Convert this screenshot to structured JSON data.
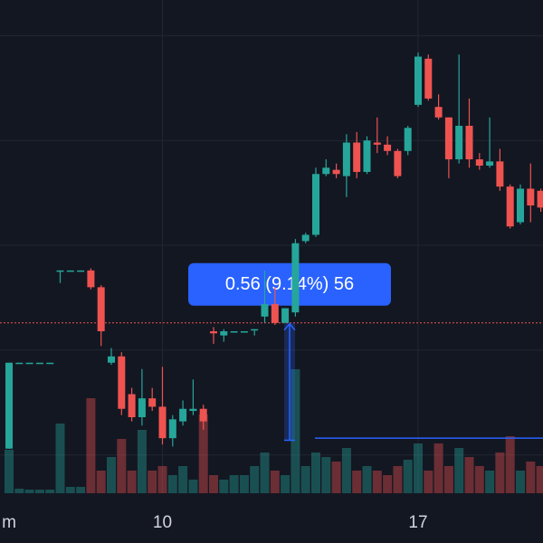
{
  "chart_data": {
    "type": "candlestick",
    "categories": [
      "m",
      null,
      null,
      null,
      null,
      null,
      null,
      null,
      null,
      null,
      null,
      null,
      null,
      null,
      null,
      "10",
      null,
      null,
      null,
      null,
      null,
      null,
      null,
      null,
      null,
      null,
      null,
      null,
      null,
      null,
      null,
      null,
      null,
      null,
      null,
      null,
      null,
      null,
      null,
      null,
      "17",
      null,
      null,
      null,
      null,
      null,
      null,
      null,
      null,
      null,
      null,
      null,
      null
    ],
    "open": [
      5.53,
      5.94,
      5.94,
      5.94,
      5.94,
      6.38,
      6.38,
      6.38,
      6.38,
      6.3,
      5.94,
      5.97,
      5.79,
      5.68,
      5.77,
      5.73,
      5.58,
      5.66,
      5.71,
      5.72,
      6.09,
      6.07,
      6.09,
      6.09,
      6.1,
      6.16,
      6.22,
      6.13,
      6.18,
      6.52,
      6.55,
      6.84,
      6.86,
      6.83,
      6.99,
      6.85,
      6.99,
      6.98,
      6.95,
      6.95,
      7.17,
      7.39,
      7.16,
      7.11,
      6.91,
      7.07,
      6.91,
      6.88,
      6.9,
      6.78,
      6.61,
      6.77,
      6.76
    ],
    "high": [
      5.94,
      5.94,
      5.94,
      5.94,
      5.94,
      6.38,
      6.38,
      6.38,
      6.39,
      6.31,
      6.01,
      5.99,
      5.82,
      5.91,
      5.82,
      5.92,
      5.69,
      5.76,
      5.86,
      5.74,
      6.11,
      6.1,
      6.09,
      6.09,
      6.1,
      6.38,
      6.3,
      6.2,
      6.53,
      6.56,
      6.87,
      6.91,
      6.89,
      7.03,
      7.04,
      7.02,
      7.11,
      7.02,
      6.96,
      7.07,
      7.42,
      7.41,
      7.22,
      7.11,
      7.41,
      7.2,
      6.94,
      7.11,
      6.96,
      6.79,
      6.79,
      6.89,
      6.77
    ],
    "low": [
      5.53,
      5.94,
      5.94,
      5.94,
      5.94,
      6.32,
      6.38,
      6.38,
      6.29,
      6.02,
      5.93,
      5.69,
      5.66,
      5.64,
      5.71,
      5.55,
      5.54,
      5.64,
      5.69,
      5.62,
      6.03,
      6.04,
      6.09,
      6.09,
      6.07,
      6.13,
      6.12,
      6.13,
      6.16,
      6.51,
      6.54,
      6.83,
      6.82,
      6.73,
      6.82,
      6.84,
      6.94,
      6.93,
      6.82,
      6.93,
      7.16,
      7.19,
      7.1,
      6.82,
      6.89,
      6.87,
      6.86,
      6.87,
      6.76,
      6.58,
      6.6,
      6.61,
      6.66
    ],
    "close": [
      5.94,
      5.94,
      5.94,
      5.94,
      5.94,
      6.38,
      6.38,
      6.38,
      6.3,
      6.09,
      5.97,
      5.72,
      5.68,
      5.77,
      5.73,
      5.58,
      5.67,
      5.72,
      5.72,
      5.66,
      6.08,
      6.09,
      6.09,
      6.09,
      6.1,
      6.22,
      6.13,
      6.2,
      6.51,
      6.55,
      6.84,
      6.87,
      6.84,
      6.99,
      6.85,
      7.0,
      6.98,
      6.95,
      6.83,
      7.06,
      7.4,
      7.2,
      7.11,
      6.91,
      7.07,
      6.91,
      6.88,
      6.9,
      6.78,
      6.59,
      6.77,
      6.69,
      6.68
    ],
    "volume": [
      48,
      5,
      4,
      4,
      4,
      77,
      7,
      7,
      105,
      25,
      40,
      60,
      25,
      70,
      25,
      30,
      20,
      30,
      15,
      87,
      20,
      15,
      20,
      20,
      30,
      45,
      25,
      20,
      137,
      30,
      45,
      40,
      35,
      50,
      25,
      30,
      25,
      20,
      30,
      37,
      55,
      25,
      55,
      30,
      50,
      40,
      30,
      25,
      45,
      63,
      25,
      35,
      30
    ],
    "up_color": "#26a69a",
    "down_color": "#ef5350",
    "ylim": [
      5.08,
      7.67
    ],
    "yticks": [
      5.5,
      6.0,
      6.5,
      7.0,
      7.5
    ],
    "vlim": [
      0,
      545
    ],
    "grid": true,
    "price_line": 6.13,
    "hline": 5.58,
    "measure": {
      "from": 5.57,
      "to": 6.13,
      "label": "0.56 (9.14%) 56"
    }
  }
}
